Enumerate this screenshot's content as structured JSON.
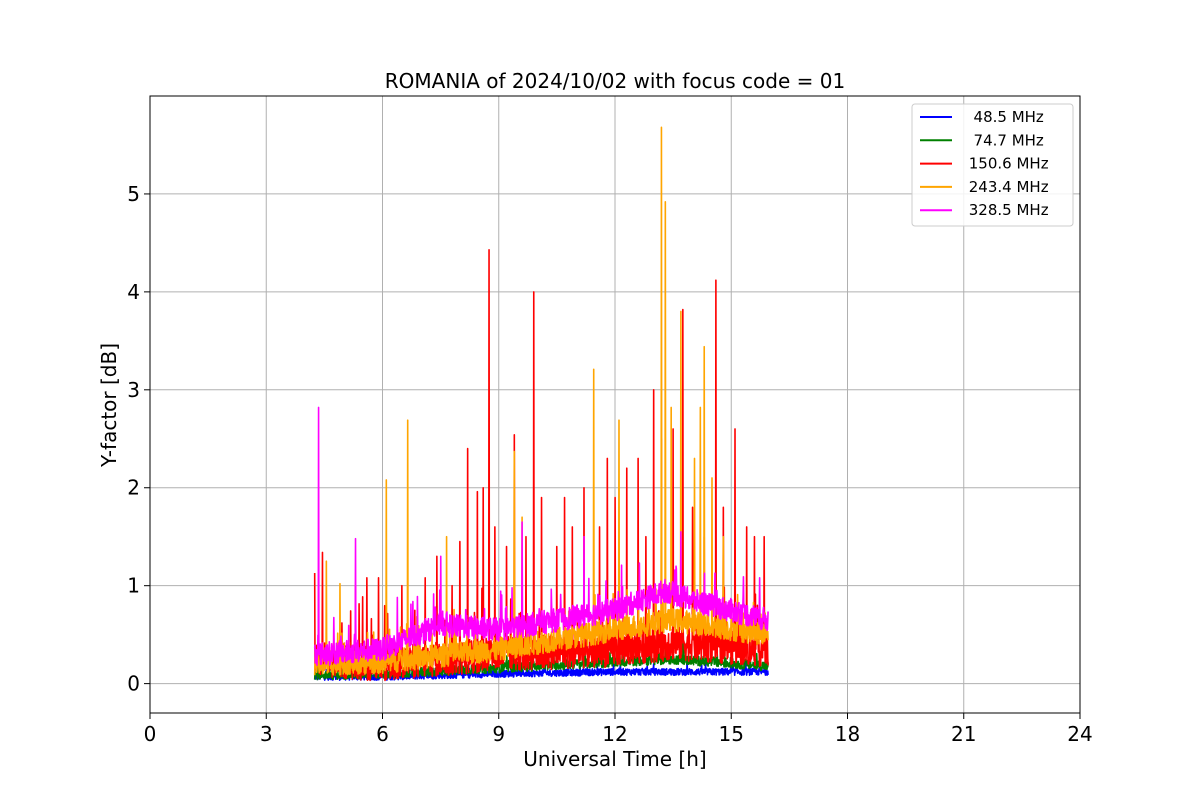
{
  "chart_data": {
    "type": "line",
    "title": "ROMANIA of 2024/10/02 with focus code = 01",
    "xlabel": "Universal Time [h]",
    "ylabel": "Y-factor [dB]",
    "xlim": [
      0,
      24
    ],
    "ylim": [
      -0.3,
      6.0
    ],
    "xticks": [
      0,
      3,
      6,
      9,
      12,
      15,
      18,
      21,
      24
    ],
    "xtick_labels": [
      "0",
      "3",
      "6",
      "9",
      "12",
      "15",
      "18",
      "21",
      "24"
    ],
    "yticks": [
      0,
      1,
      2,
      3,
      4,
      5
    ],
    "ytick_labels": [
      "0",
      "1",
      "2",
      "3",
      "4",
      "5"
    ],
    "grid": true,
    "legend_position": "top-right",
    "x_start": 4.25,
    "x_end": 15.95,
    "series": [
      {
        "name": "  48.5 MHz",
        "color": "#0000ff",
        "baseline": [
          [
            4.25,
            0.07
          ],
          [
            6,
            0.07
          ],
          [
            9,
            0.1
          ],
          [
            12,
            0.12
          ],
          [
            15.95,
            0.12
          ]
        ],
        "noise": 0.035,
        "spikes": [
          [
            4.3,
            0.16
          ],
          [
            10.2,
            0.2
          ],
          [
            13.0,
            0.2
          ]
        ]
      },
      {
        "name": "  74.7 MHz",
        "color": "#008000",
        "baseline": [
          [
            4.25,
            0.09
          ],
          [
            6,
            0.1
          ],
          [
            9,
            0.16
          ],
          [
            12,
            0.22
          ],
          [
            13.5,
            0.25
          ],
          [
            15.95,
            0.18
          ]
        ],
        "noise": 0.05,
        "spikes": [
          [
            9.4,
            0.32
          ],
          [
            12.2,
            0.36
          ],
          [
            13.3,
            0.38
          ]
        ]
      },
      {
        "name": " 150.6 MHz",
        "color": "#ff0000",
        "baseline": [
          [
            4.25,
            0.25
          ],
          [
            6,
            0.2
          ],
          [
            9,
            0.3
          ],
          [
            12,
            0.35
          ],
          [
            13.5,
            0.42
          ],
          [
            15.95,
            0.35
          ]
        ],
        "noise": 0.18,
        "spikes": [
          [
            4.25,
            1.13
          ],
          [
            4.45,
            1.34
          ],
          [
            5.3,
            1.0
          ],
          [
            5.6,
            1.08
          ],
          [
            5.9,
            1.08
          ],
          [
            6.5,
            1.0
          ],
          [
            7.1,
            1.08
          ],
          [
            7.4,
            1.3
          ],
          [
            7.8,
            1.0
          ],
          [
            8.0,
            1.45
          ],
          [
            8.2,
            2.4
          ],
          [
            8.45,
            1.96
          ],
          [
            8.6,
            2.0
          ],
          [
            8.75,
            4.43
          ],
          [
            8.9,
            1.6
          ],
          [
            9.2,
            1.4
          ],
          [
            9.4,
            2.54
          ],
          [
            9.7,
            1.5
          ],
          [
            9.9,
            4.0
          ],
          [
            10.1,
            1.9
          ],
          [
            10.5,
            1.4
          ],
          [
            10.7,
            1.9
          ],
          [
            10.9,
            1.6
          ],
          [
            11.2,
            2.0
          ],
          [
            11.6,
            1.6
          ],
          [
            11.8,
            2.3
          ],
          [
            12.0,
            1.9
          ],
          [
            12.3,
            2.2
          ],
          [
            12.6,
            2.3
          ],
          [
            12.8,
            1.5
          ],
          [
            13.0,
            3.0
          ],
          [
            13.2,
            2.5
          ],
          [
            13.5,
            2.6
          ],
          [
            13.75,
            3.82
          ],
          [
            14.0,
            1.8
          ],
          [
            14.3,
            1.5
          ],
          [
            14.6,
            4.12
          ],
          [
            14.8,
            1.8
          ],
          [
            15.1,
            2.6
          ],
          [
            15.4,
            1.6
          ],
          [
            15.6,
            1.5
          ],
          [
            15.85,
            1.5
          ]
        ]
      },
      {
        "name": " 243.4 MHz",
        "color": "#ffa500",
        "baseline": [
          [
            4.25,
            0.2
          ],
          [
            6,
            0.22
          ],
          [
            9,
            0.35
          ],
          [
            12,
            0.55
          ],
          [
            13.5,
            0.65
          ],
          [
            15.95,
            0.5
          ]
        ],
        "noise": 0.12,
        "spikes": [
          [
            4.55,
            1.25
          ],
          [
            4.9,
            1.02
          ],
          [
            6.1,
            2.08
          ],
          [
            6.65,
            2.69
          ],
          [
            7.65,
            1.5
          ],
          [
            9.4,
            2.37
          ],
          [
            9.6,
            1.7
          ],
          [
            11.45,
            3.21
          ],
          [
            12.1,
            2.69
          ],
          [
            13.2,
            5.68
          ],
          [
            13.3,
            4.92
          ],
          [
            13.45,
            2.82
          ],
          [
            13.7,
            3.8
          ],
          [
            14.05,
            2.3
          ],
          [
            14.2,
            2.82
          ],
          [
            14.3,
            3.44
          ],
          [
            14.5,
            2.1
          ],
          [
            14.8,
            1.5
          ]
        ]
      },
      {
        "name": " 328.5 MHz",
        "color": "#ff00ff",
        "baseline": [
          [
            4.25,
            0.3
          ],
          [
            6,
            0.35
          ],
          [
            7.5,
            0.6
          ],
          [
            9,
            0.55
          ],
          [
            12,
            0.75
          ],
          [
            13.3,
            0.95
          ],
          [
            14,
            0.85
          ],
          [
            15.95,
            0.65
          ]
        ],
        "noise": 0.12,
        "spikes": [
          [
            4.35,
            2.82
          ],
          [
            5.3,
            1.48
          ],
          [
            7.5,
            1.3
          ],
          [
            9.6,
            1.65
          ],
          [
            11.2,
            1.5
          ],
          [
            13.7,
            1.55
          ]
        ]
      }
    ]
  }
}
